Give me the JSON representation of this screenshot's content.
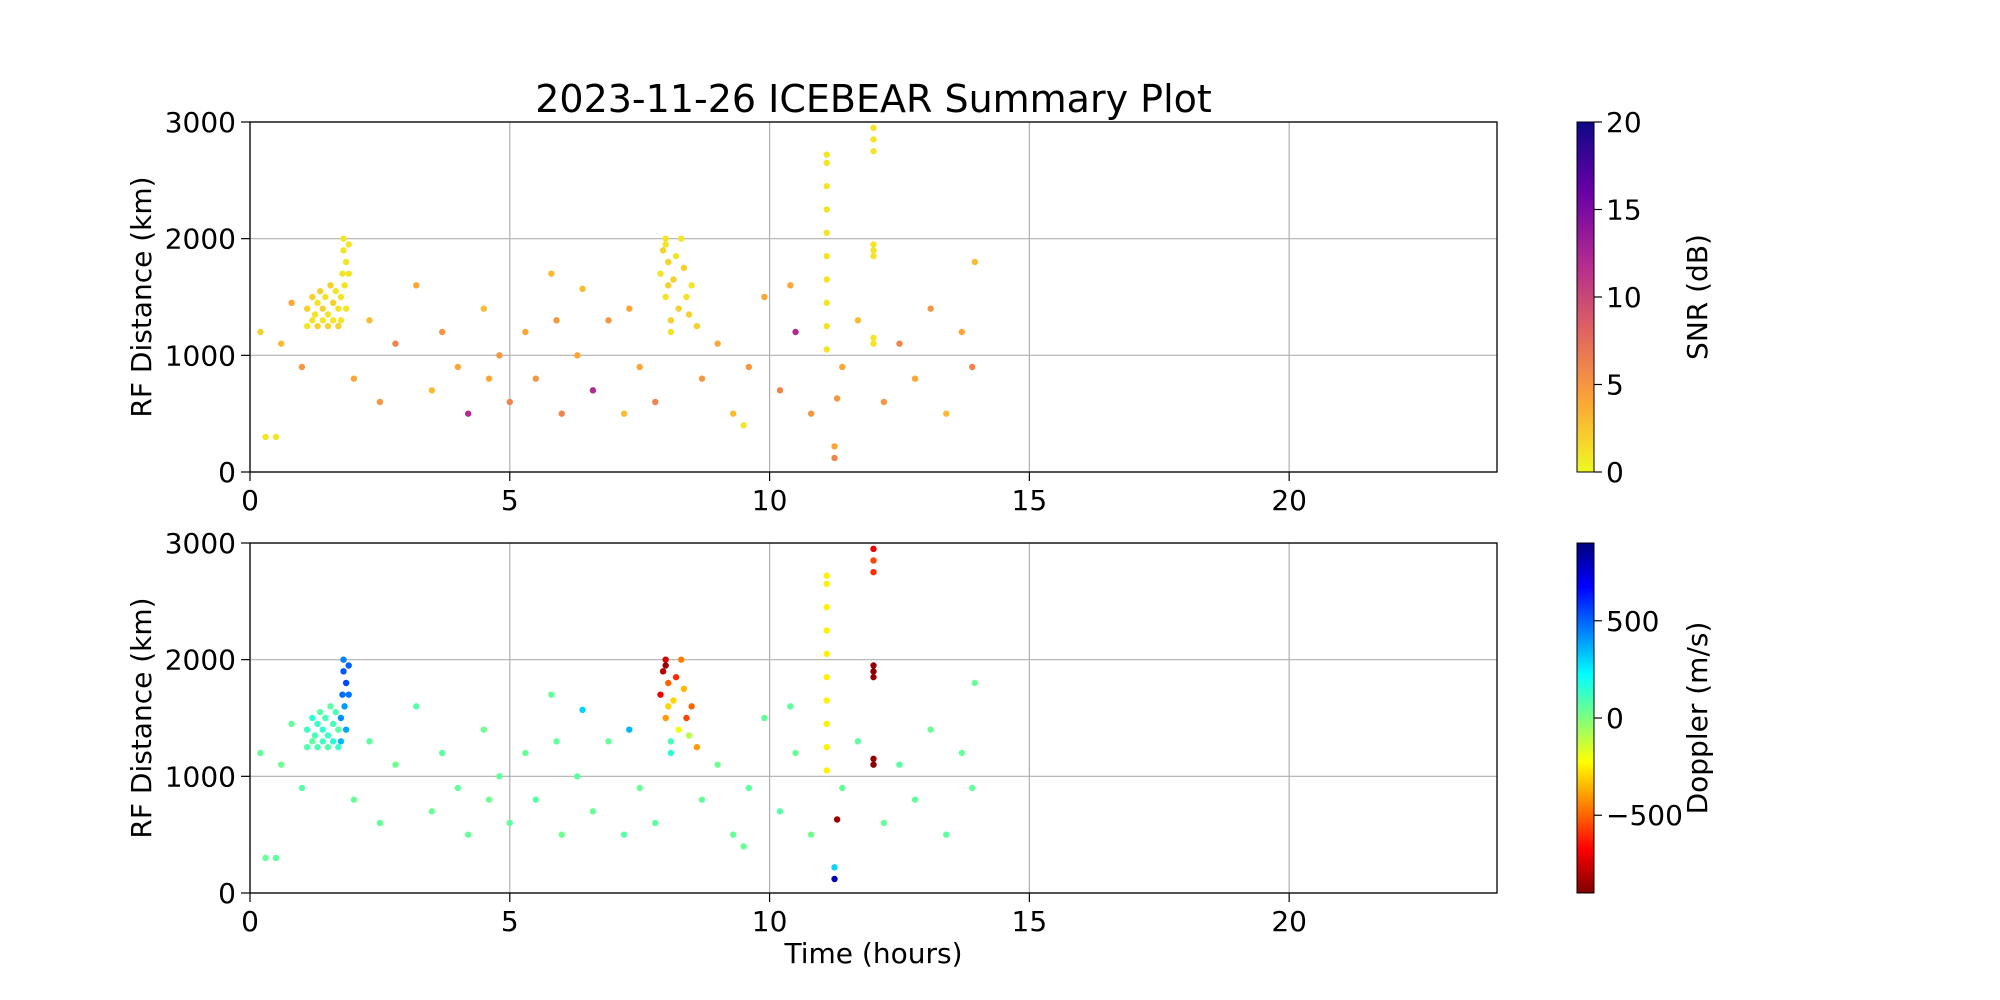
{
  "chart_data": [
    {
      "type": "scatter",
      "title": "2023-11-26 ICEBEAR Summary Plot",
      "ylabel": "RF Distance (km)",
      "colorbar_label": "SNR (dB)",
      "clim": [
        0,
        20
      ],
      "cticks": [
        0,
        5,
        10,
        15,
        20
      ],
      "colormap": [
        "#f0f921",
        "#fca636",
        "#e16462",
        "#b12a90",
        "#6a00a8",
        "#0d0887"
      ],
      "xlim": [
        0,
        24
      ],
      "xticks": [
        0,
        5,
        10,
        15,
        20
      ],
      "ylim": [
        0,
        3000
      ],
      "yticks": [
        0,
        1000,
        2000,
        3000
      ],
      "grid": true,
      "x": [
        1.1,
        1.1,
        1.2,
        1.2,
        1.25,
        1.3,
        1.3,
        1.35,
        1.4,
        1.4,
        1.45,
        1.5,
        1.5,
        1.55,
        1.6,
        1.6,
        1.65,
        1.7,
        1.7,
        1.75,
        1.75,
        1.78,
        1.8,
        1.8,
        1.82,
        1.85,
        1.85,
        1.9,
        1.9,
        7.9,
        7.95,
        8.0,
        8.05,
        8.0,
        8.1,
        8.1,
        8.15,
        8.2,
        8.25,
        8.3,
        8.35,
        8.4,
        8.45,
        8.5,
        8.6,
        8.0,
        8.05,
        11.1,
        11.1,
        11.1,
        11.1,
        11.1,
        11.1,
        11.1,
        11.1,
        11.1,
        11.1,
        12.0,
        12.0,
        12.0,
        12.0,
        12.0,
        12.0,
        12.0,
        12.0,
        11.3,
        11.25,
        11.25,
        6.4,
        7.3,
        0.2,
        0.3,
        0.5,
        0.6,
        0.8,
        1.0,
        2.0,
        2.3,
        2.5,
        2.8,
        3.2,
        3.5,
        3.7,
        4.0,
        4.2,
        4.5,
        4.8,
        5.0,
        5.3,
        5.5,
        5.8,
        6.0,
        6.3,
        6.6,
        6.9,
        7.2,
        7.5,
        7.8,
        8.7,
        9.0,
        9.3,
        9.6,
        9.9,
        10.2,
        10.5,
        10.8,
        11.4,
        11.7,
        12.2,
        12.5,
        12.8,
        13.1,
        13.4,
        13.7,
        13.9,
        13.95,
        10.4,
        5.9,
        4.6,
        9.5
      ],
      "values": [
        1250,
        1400,
        1300,
        1500,
        1350,
        1250,
        1450,
        1550,
        1300,
        1400,
        1500,
        1250,
        1350,
        1600,
        1300,
        1450,
        1550,
        1250,
        1400,
        1300,
        1500,
        1700,
        1900,
        2000,
        1600,
        1800,
        1400,
        1950,
        1700,
        1700,
        1900,
        2000,
        1800,
        1500,
        1300,
        1200,
        1650,
        1850,
        1400,
        2000,
        1750,
        1500,
        1350,
        1600,
        1250,
        1950,
        1600,
        1050,
        1250,
        1450,
        1650,
        1850,
        2050,
        2250,
        2450,
        2650,
        2720,
        2750,
        2850,
        2950,
        1900,
        1950,
        1850,
        1100,
        1150,
        630,
        220,
        120,
        1570,
        1400,
        1200,
        300,
        300,
        1100,
        1450,
        900,
        800,
        1300,
        600,
        1100,
        1600,
        700,
        1200,
        900,
        500,
        1400,
        1000,
        600,
        1200,
        800,
        1700,
        500,
        1000,
        700,
        1300,
        500,
        900,
        600,
        800,
        1100,
        500,
        900,
        1500,
        700,
        1200,
        500,
        900,
        1300,
        600,
        1100,
        800,
        1400,
        500,
        1200,
        900,
        1800,
        1600,
        1300,
        800,
        400
      ],
      "color_values": [
        1,
        2,
        1,
        2,
        1,
        2,
        1,
        2,
        1,
        2,
        1,
        2,
        1,
        2,
        1,
        2,
        1,
        2,
        1,
        1,
        1,
        1,
        1,
        1,
        1,
        1,
        1,
        1,
        1,
        1,
        2,
        1,
        2,
        1,
        2,
        1,
        2,
        1,
        2,
        1,
        2,
        1,
        2,
        1,
        2,
        1,
        2,
        1,
        1,
        1,
        1,
        1,
        1,
        1,
        1,
        1,
        1,
        1,
        1,
        1,
        1,
        1,
        1,
        1,
        1,
        5,
        4,
        6,
        3,
        4,
        2,
        1,
        1,
        3,
        4,
        5,
        4,
        3,
        5,
        6,
        4,
        3,
        5,
        4,
        12,
        3,
        5,
        6,
        4,
        5,
        3,
        6,
        4,
        12,
        5,
        3,
        4,
        6,
        5,
        4,
        3,
        5,
        4,
        6,
        12,
        5,
        4,
        3,
        5,
        6,
        4,
        5,
        3,
        4,
        6,
        3,
        4,
        5,
        4,
        1
      ]
    },
    {
      "type": "scatter",
      "ylabel": "RF Distance (km)",
      "xlabel": "Time (hours)",
      "colorbar_label": "Doppler (m/s)",
      "clim": [
        -900,
        900
      ],
      "cticks": [
        {
          "value": -500,
          "label": "−500"
        },
        0,
        500
      ],
      "colormap": [
        "#7f0000",
        "#ff0000",
        "#ff7f00",
        "#ffff00",
        "#7fff7f",
        "#00ffff",
        "#007fff",
        "#0000ff",
        "#00007f"
      ],
      "xlim": [
        0,
        24
      ],
      "xticks": [
        0,
        5,
        10,
        15,
        20
      ],
      "ylim": [
        0,
        3000
      ],
      "yticks": [
        0,
        1000,
        2000,
        3000
      ],
      "grid": true,
      "x": [
        1.1,
        1.1,
        1.2,
        1.2,
        1.25,
        1.3,
        1.3,
        1.35,
        1.4,
        1.4,
        1.45,
        1.5,
        1.5,
        1.55,
        1.6,
        1.6,
        1.65,
        1.7,
        1.7,
        1.75,
        1.75,
        1.78,
        1.8,
        1.8,
        1.82,
        1.85,
        1.85,
        1.9,
        1.9,
        7.9,
        7.95,
        8.0,
        8.05,
        8.0,
        8.1,
        8.1,
        8.15,
        8.2,
        8.25,
        8.3,
        8.35,
        8.4,
        8.45,
        8.5,
        8.6,
        8.0,
        8.05,
        11.1,
        11.1,
        11.1,
        11.1,
        11.1,
        11.1,
        11.1,
        11.1,
        11.1,
        11.1,
        12.0,
        12.0,
        12.0,
        12.0,
        12.0,
        12.0,
        12.0,
        12.0,
        11.3,
        11.25,
        11.25,
        6.4,
        7.3,
        0.2,
        0.3,
        0.5,
        0.6,
        0.8,
        1.0,
        2.0,
        2.3,
        2.5,
        2.8,
        3.2,
        3.5,
        3.7,
        4.0,
        4.2,
        4.5,
        4.8,
        5.0,
        5.3,
        5.5,
        5.8,
        6.0,
        6.3,
        6.6,
        6.9,
        7.2,
        7.5,
        7.8,
        8.7,
        9.0,
        9.3,
        9.6,
        9.9,
        10.2,
        10.5,
        10.8,
        11.4,
        11.7,
        12.2,
        12.5,
        12.8,
        13.1,
        13.4,
        13.7,
        13.9,
        13.95,
        10.4,
        5.9,
        4.6,
        9.5
      ],
      "values": [
        1250,
        1400,
        1300,
        1500,
        1350,
        1250,
        1450,
        1550,
        1300,
        1400,
        1500,
        1250,
        1350,
        1600,
        1300,
        1450,
        1550,
        1250,
        1400,
        1300,
        1500,
        1700,
        1900,
        2000,
        1600,
        1800,
        1400,
        1950,
        1700,
        1700,
        1900,
        2000,
        1800,
        1500,
        1300,
        1200,
        1650,
        1850,
        1400,
        2000,
        1750,
        1500,
        1350,
        1600,
        1250,
        1950,
        1600,
        1050,
        1250,
        1450,
        1650,
        1850,
        2050,
        2250,
        2450,
        2650,
        2720,
        2750,
        2850,
        2950,
        1900,
        1950,
        1850,
        1100,
        1150,
        630,
        220,
        120,
        1570,
        1400,
        1200,
        300,
        300,
        1100,
        1450,
        900,
        800,
        1300,
        600,
        1100,
        1600,
        700,
        1200,
        900,
        500,
        1400,
        1000,
        600,
        1200,
        800,
        1700,
        500,
        1000,
        700,
        1300,
        500,
        900,
        600,
        800,
        1100,
        500,
        900,
        1500,
        700,
        1200,
        500,
        900,
        1300,
        600,
        1100,
        800,
        1400,
        500,
        1200,
        900,
        1800,
        1600,
        1300,
        800,
        400
      ],
      "color_values": [
        80,
        120,
        60,
        150,
        100,
        90,
        130,
        70,
        110,
        140,
        100,
        80,
        120,
        60,
        150,
        100,
        90,
        130,
        70,
        350,
        420,
        480,
        520,
        450,
        400,
        550,
        380,
        500,
        460,
        -700,
        -800,
        -750,
        -500,
        -400,
        100,
        150,
        -300,
        -600,
        -200,
        -450,
        -350,
        -550,
        -100,
        -500,
        -400,
        -850,
        -300,
        -250,
        -250,
        -250,
        -250,
        -250,
        -250,
        -250,
        -250,
        -250,
        -250,
        -600,
        -550,
        -700,
        -880,
        -860,
        -870,
        -880,
        -860,
        -850,
        300,
        800,
        300,
        350,
        50,
        40,
        60,
        30,
        50,
        70,
        40,
        60,
        50,
        30,
        70,
        40,
        60,
        50,
        40,
        30,
        50,
        60,
        40,
        70,
        50,
        30,
        60,
        40,
        50,
        70,
        40,
        60,
        50,
        30,
        40,
        60,
        50,
        70,
        40,
        30,
        50,
        60,
        40,
        70,
        50,
        30,
        60,
        40,
        50,
        40,
        60,
        50,
        30,
        40
      ]
    }
  ]
}
